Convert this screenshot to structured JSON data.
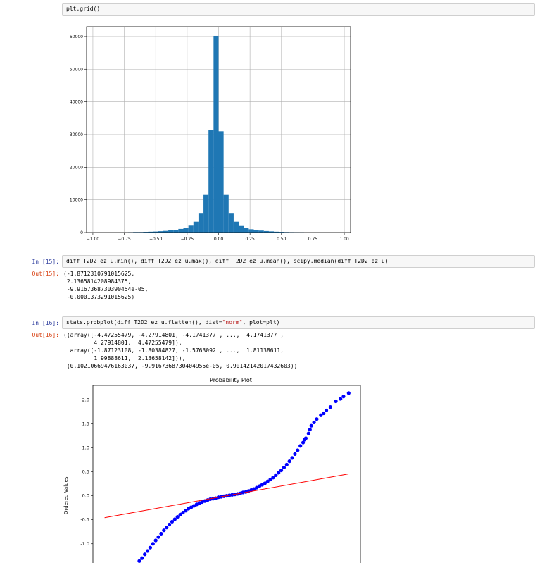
{
  "cells": {
    "top_code": "plt.grid()",
    "in15_prompt": "In [15]:",
    "in15_code": "diff T2D2 ez u.min(), diff T2D2 ez u.max(), diff T2D2 ez u.mean(), scipy.median(diff T2D2 ez u)",
    "out15_prompt": "Out[15]:",
    "out15_text": "(-1.8712310791015625,\n 2.1365814208984375,\n -9.9167368730390454e-05,\n -0.0001373291015625)",
    "in16_prompt": "In [16]:",
    "in16_code_pre": "stats.probplot(diff T2D2 ez u.flatten(), dist=",
    "in16_code_str": "\"norm\"",
    "in16_code_post": ", plot=plt)",
    "out16_prompt": "Out[16]:",
    "out16_text": "((array([-4.47255479, -4.27914801, -4.1741377 , ...,  4.1741377 ,\n         4.27914801,  4.47255479]),\n  array([-1.87123108, -1.80384827, -1.5763092 , ...,  1.81138611,\n         1.99888611,  2.13658142])),\n (0.10210669476163037, -9.9167368730404955e-05, 0.90142142017432603))"
  },
  "colors": {
    "bar": "#1f77b4",
    "points": "#0000ff",
    "fit_line": "#ff0000",
    "in_prompt": "#303F9F",
    "out_prompt": "#D84315"
  },
  "chart_data": [
    {
      "type": "bar",
      "title": "",
      "xlabel": "",
      "ylabel": "",
      "grid": true,
      "xlim": [
        -1.05,
        1.05
      ],
      "ylim": [
        0,
        63000
      ],
      "xticks": [
        "−1.00",
        "−0.75",
        "−0.50",
        "−0.25",
        "0.00",
        "0.25",
        "0.50",
        "0.75",
        "1.00"
      ],
      "yticks": [
        "0",
        "10000",
        "20000",
        "30000",
        "40000",
        "50000",
        "60000"
      ],
      "bin_width": 0.04,
      "bins": [
        {
          "x": -0.7,
          "y": 100
        },
        {
          "x": -0.66,
          "y": 150
        },
        {
          "x": -0.62,
          "y": 150
        },
        {
          "x": -0.58,
          "y": 200
        },
        {
          "x": -0.54,
          "y": 250
        },
        {
          "x": -0.5,
          "y": 300
        },
        {
          "x": -0.46,
          "y": 400
        },
        {
          "x": -0.42,
          "y": 500
        },
        {
          "x": -0.38,
          "y": 650
        },
        {
          "x": -0.34,
          "y": 800
        },
        {
          "x": -0.3,
          "y": 1100
        },
        {
          "x": -0.26,
          "y": 1500
        },
        {
          "x": -0.22,
          "y": 2100
        },
        {
          "x": -0.18,
          "y": 3300
        },
        {
          "x": -0.14,
          "y": 6000
        },
        {
          "x": -0.1,
          "y": 11500
        },
        {
          "x": -0.06,
          "y": 31500
        },
        {
          "x": -0.02,
          "y": 60200
        },
        {
          "x": 0.02,
          "y": 31000
        },
        {
          "x": 0.06,
          "y": 11500
        },
        {
          "x": 0.1,
          "y": 6000
        },
        {
          "x": 0.14,
          "y": 3300
        },
        {
          "x": 0.18,
          "y": 2000
        },
        {
          "x": 0.22,
          "y": 1400
        },
        {
          "x": 0.26,
          "y": 1000
        },
        {
          "x": 0.3,
          "y": 800
        },
        {
          "x": 0.34,
          "y": 600
        },
        {
          "x": 0.38,
          "y": 450
        },
        {
          "x": 0.42,
          "y": 350
        },
        {
          "x": 0.46,
          "y": 250
        },
        {
          "x": 0.5,
          "y": 200
        },
        {
          "x": 0.54,
          "y": 150
        },
        {
          "x": 0.58,
          "y": 120
        },
        {
          "x": 0.62,
          "y": 100
        },
        {
          "x": 0.66,
          "y": 80
        }
      ]
    },
    {
      "type": "scatter",
      "title": "Probability Plot",
      "xlabel": "",
      "ylabel": "Ordered Values",
      "grid": false,
      "xlim": [
        -4.9,
        4.9
      ],
      "ylim": [
        -1.4,
        2.3
      ],
      "yticks": [
        "-1.0",
        "-0.5",
        "0.0",
        "0.5",
        "1.0",
        "1.5",
        "2.0"
      ],
      "ytick_values": [
        -1.0,
        -0.5,
        0.0,
        0.5,
        1.0,
        1.5,
        2.0
      ],
      "fit_line": {
        "slope": 0.10210669476163037,
        "intercept": -9.916736873040495e-05,
        "x_range": [
          -4.47255479,
          4.47255479
        ]
      },
      "points": [
        {
          "x": -3.2,
          "y": -1.36
        },
        {
          "x": -3.1,
          "y": -1.3
        },
        {
          "x": -3.0,
          "y": -1.22
        },
        {
          "x": -2.9,
          "y": -1.15
        },
        {
          "x": -2.8,
          "y": -1.08
        },
        {
          "x": -2.7,
          "y": -1.0
        },
        {
          "x": -2.6,
          "y": -0.93
        },
        {
          "x": -2.5,
          "y": -0.86
        },
        {
          "x": -2.4,
          "y": -0.79
        },
        {
          "x": -2.3,
          "y": -0.72
        },
        {
          "x": -2.2,
          "y": -0.66
        },
        {
          "x": -2.1,
          "y": -0.6
        },
        {
          "x": -2.0,
          "y": -0.54
        },
        {
          "x": -1.9,
          "y": -0.49
        },
        {
          "x": -1.8,
          "y": -0.44
        },
        {
          "x": -1.7,
          "y": -0.39
        },
        {
          "x": -1.6,
          "y": -0.35
        },
        {
          "x": -1.5,
          "y": -0.31
        },
        {
          "x": -1.4,
          "y": -0.27
        },
        {
          "x": -1.3,
          "y": -0.24
        },
        {
          "x": -1.2,
          "y": -0.21
        },
        {
          "x": -1.1,
          "y": -0.18
        },
        {
          "x": -1.0,
          "y": -0.15
        },
        {
          "x": -0.9,
          "y": -0.13
        },
        {
          "x": -0.8,
          "y": -0.11
        },
        {
          "x": -0.7,
          "y": -0.09
        },
        {
          "x": -0.6,
          "y": -0.07
        },
        {
          "x": -0.5,
          "y": -0.06
        },
        {
          "x": -0.4,
          "y": -0.05
        },
        {
          "x": -0.3,
          "y": -0.03
        },
        {
          "x": -0.2,
          "y": -0.02
        },
        {
          "x": -0.1,
          "y": -0.01
        },
        {
          "x": 0.0,
          "y": 0.0
        },
        {
          "x": 0.1,
          "y": 0.01
        },
        {
          "x": 0.2,
          "y": 0.02
        },
        {
          "x": 0.3,
          "y": 0.03
        },
        {
          "x": 0.4,
          "y": 0.04
        },
        {
          "x": 0.5,
          "y": 0.05
        },
        {
          "x": 0.6,
          "y": 0.07
        },
        {
          "x": 0.7,
          "y": 0.08
        },
        {
          "x": 0.8,
          "y": 0.1
        },
        {
          "x": 0.9,
          "y": 0.12
        },
        {
          "x": 1.0,
          "y": 0.14
        },
        {
          "x": 1.1,
          "y": 0.17
        },
        {
          "x": 1.2,
          "y": 0.2
        },
        {
          "x": 1.3,
          "y": 0.23
        },
        {
          "x": 1.4,
          "y": 0.26
        },
        {
          "x": 1.5,
          "y": 0.3
        },
        {
          "x": 1.6,
          "y": 0.34
        },
        {
          "x": 1.7,
          "y": 0.38
        },
        {
          "x": 1.8,
          "y": 0.43
        },
        {
          "x": 1.9,
          "y": 0.48
        },
        {
          "x": 2.0,
          "y": 0.53
        },
        {
          "x": 2.1,
          "y": 0.59
        },
        {
          "x": 2.2,
          "y": 0.65
        },
        {
          "x": 2.3,
          "y": 0.72
        },
        {
          "x": 2.4,
          "y": 0.79
        },
        {
          "x": 2.5,
          "y": 0.87
        },
        {
          "x": 2.6,
          "y": 0.95
        },
        {
          "x": 2.7,
          "y": 1.04
        },
        {
          "x": 2.8,
          "y": 1.11
        },
        {
          "x": 2.85,
          "y": 1.17
        },
        {
          "x": 2.9,
          "y": 1.2
        },
        {
          "x": 3.0,
          "y": 1.3
        },
        {
          "x": 3.05,
          "y": 1.38
        },
        {
          "x": 3.1,
          "y": 1.46
        },
        {
          "x": 3.2,
          "y": 1.53
        },
        {
          "x": 3.3,
          "y": 1.6
        },
        {
          "x": 3.45,
          "y": 1.68
        },
        {
          "x": 3.55,
          "y": 1.72
        },
        {
          "x": 3.65,
          "y": 1.78
        },
        {
          "x": 3.8,
          "y": 1.85
        },
        {
          "x": 4.0,
          "y": 1.97
        },
        {
          "x": 4.17,
          "y": 2.02
        },
        {
          "x": 4.28,
          "y": 2.07
        },
        {
          "x": 4.47,
          "y": 2.14
        }
      ]
    }
  ]
}
